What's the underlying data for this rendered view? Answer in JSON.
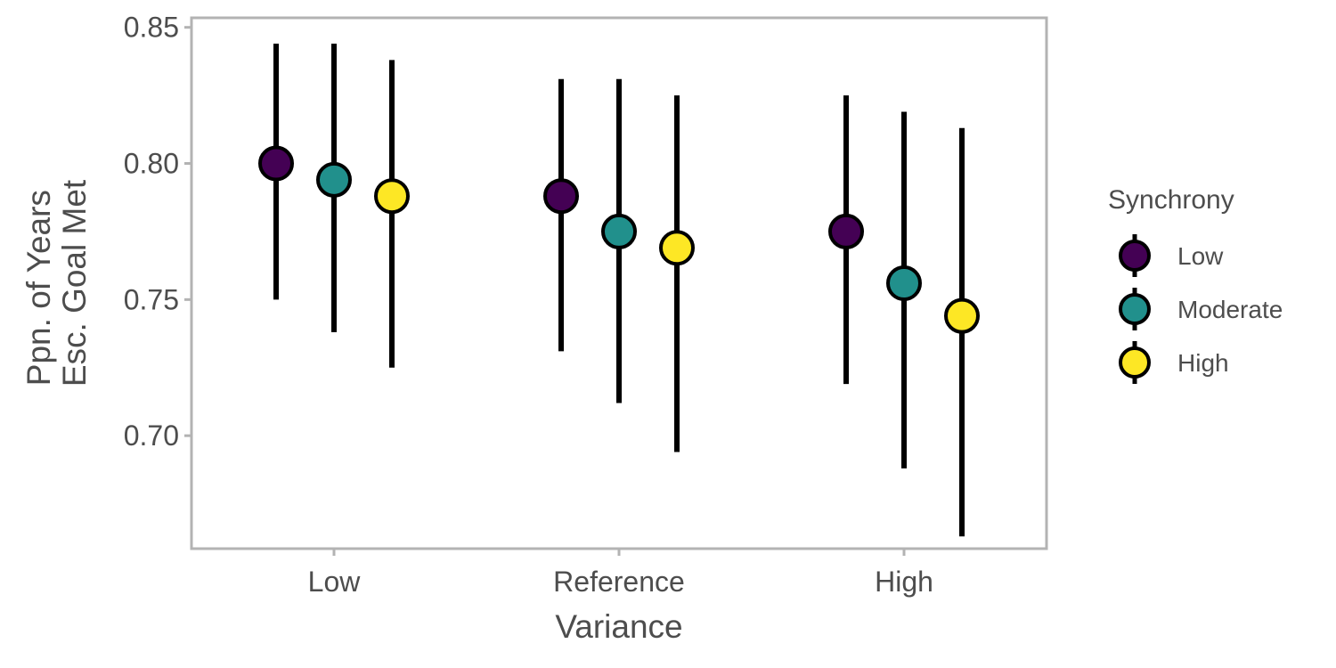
{
  "chart_data": {
    "type": "scatter",
    "title": "",
    "xlabel": "Variance",
    "ylabel_lines": [
      "Ppn. of Years",
      "Esc. Goal Met"
    ],
    "categories": [
      "Low",
      "Reference",
      "High"
    ],
    "y_ticks": [
      "0.70",
      "0.75",
      "0.80",
      "0.85"
    ],
    "ylim": [
      0.6585,
      0.8535
    ],
    "grid": false,
    "legend": {
      "title": "Synchrony",
      "position": "right"
    },
    "series": [
      {
        "name": "Low",
        "color": "#440154",
        "values": [
          0.8,
          0.788,
          0.775
        ],
        "lower": [
          0.75,
          0.731,
          0.719
        ],
        "upper": [
          0.844,
          0.831,
          0.825
        ]
      },
      {
        "name": "Moderate",
        "color": "#21908C",
        "values": [
          0.794,
          0.775,
          0.756
        ],
        "lower": [
          0.738,
          0.712,
          0.688
        ],
        "upper": [
          0.844,
          0.831,
          0.819
        ]
      },
      {
        "name": "High",
        "color": "#FDE725",
        "values": [
          0.788,
          0.769,
          0.744
        ],
        "lower": [
          0.725,
          0.694,
          0.663
        ],
        "upper": [
          0.838,
          0.825,
          0.813
        ]
      }
    ]
  }
}
